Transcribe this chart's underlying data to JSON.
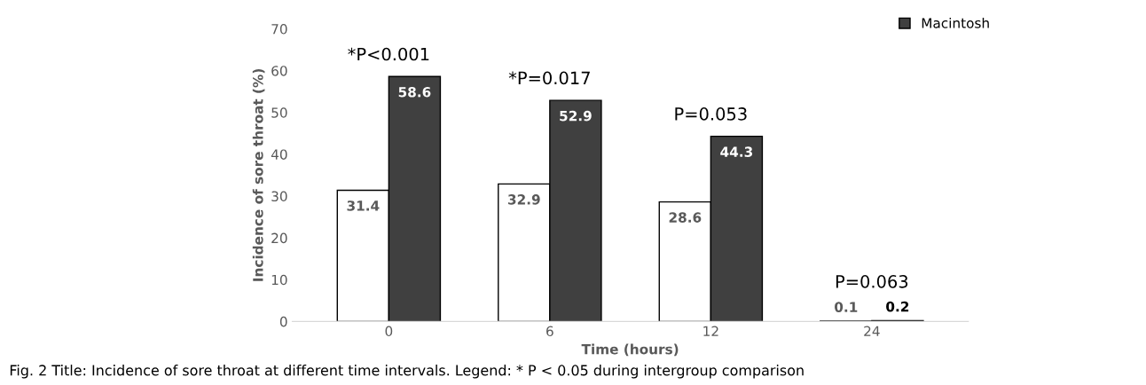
{
  "chart_data": {
    "type": "bar",
    "xlabel": "Time (hours)",
    "ylabel": "Incidence of sore throat (%)",
    "categories": [
      "0",
      "6",
      "12",
      "24"
    ],
    "series": [
      {
        "color": "#ffffff",
        "values": [
          31.4,
          32.9,
          28.6,
          0.1
        ]
      },
      {
        "name": "Macintosh",
        "color": "#404040",
        "values": [
          58.6,
          52.9,
          44.3,
          0.2
        ]
      }
    ],
    "ylim": [
      0,
      70
    ],
    "yticks": [
      0,
      10,
      20,
      30,
      40,
      50,
      60,
      70
    ],
    "grid": false,
    "legend": "top right",
    "data_labels": true,
    "annotations": [
      "*P<0.001",
      "*P=0.017",
      "P=0.053",
      "P=0.063",
      "Fig. 2 Title: Incidence of sore throat at different time intervals. Legend: * P < 0.05 during intergroup comparison"
    ]
  }
}
